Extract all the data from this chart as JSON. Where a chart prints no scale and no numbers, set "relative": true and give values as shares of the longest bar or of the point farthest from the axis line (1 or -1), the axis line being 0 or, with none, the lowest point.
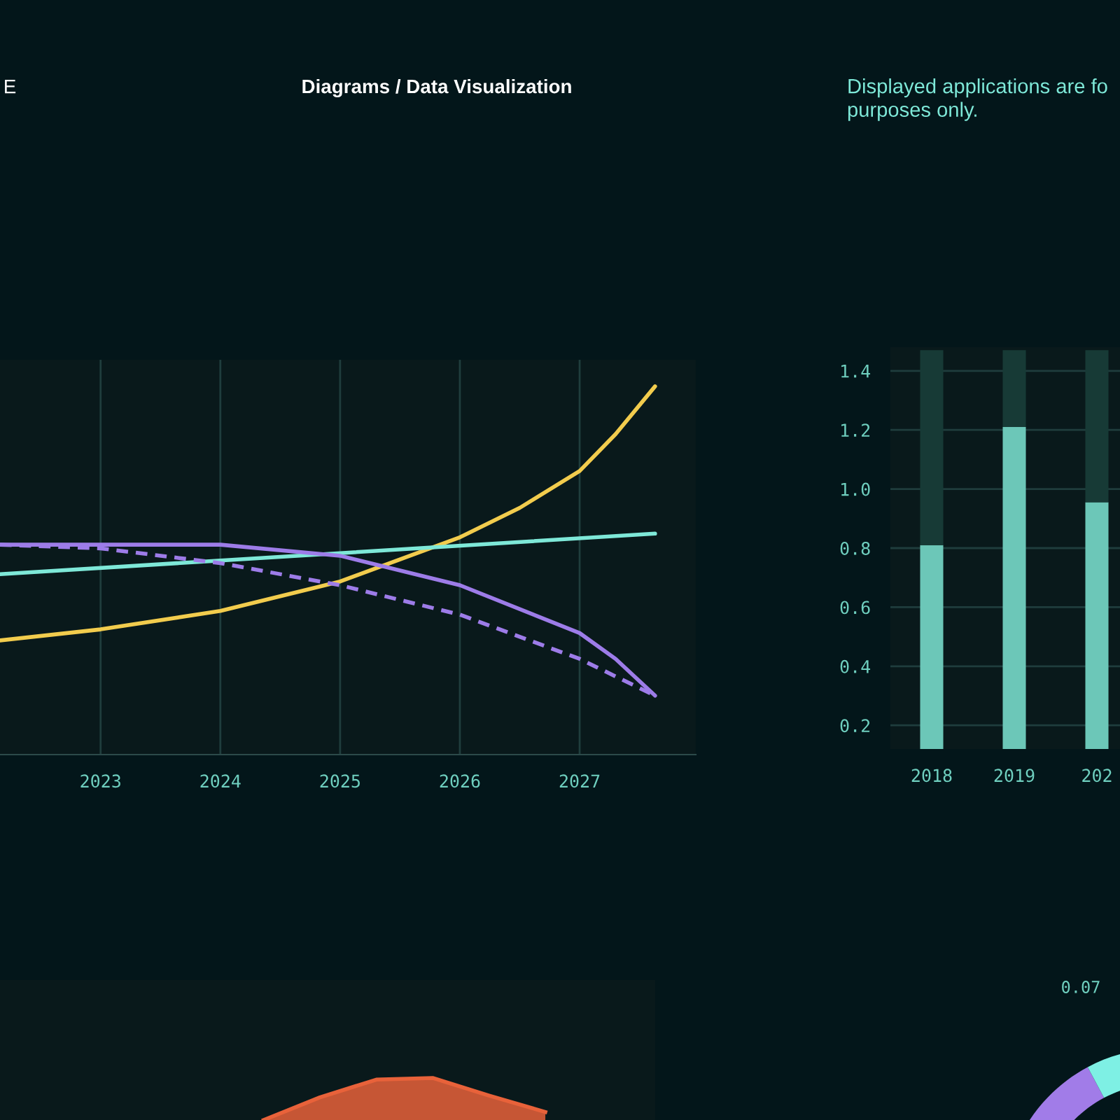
{
  "chart_data": [
    {
      "type": "line",
      "title": "Diagrams / Data Visualization",
      "annotations": [
        "E"
      ],
      "relative": true,
      "xlim": [
        2022.16,
        2027.97
      ],
      "xticks": [
        2023,
        2024,
        2025,
        2026,
        2027
      ],
      "grid": "x",
      "tick_labels": "x",
      "series": [
        {
          "color": "#f2cc4d",
          "line_style": "solid",
          "x": [
            2022.16,
            2023,
            2024,
            2025,
            2026,
            2026.5,
            2027,
            2027.3,
            2027.63
          ],
          "values": [
            0.31,
            0.34,
            0.39,
            0.47,
            0.59,
            0.67,
            0.77,
            0.87,
            1.0
          ]
        },
        {
          "color": "#7ee8d8",
          "line_style": "solid",
          "x": [
            2022.16,
            2027.63
          ],
          "values": [
            0.49,
            0.6
          ]
        },
        {
          "color": "#9d7ce8",
          "line_style": "solid",
          "x": [
            2022.16,
            2023,
            2024,
            2025,
            2026,
            2027,
            2027.3,
            2027.63
          ],
          "values": [
            0.57,
            0.57,
            0.57,
            0.54,
            0.46,
            0.33,
            0.26,
            0.16
          ]
        },
        {
          "color": "#9d7ce8",
          "line_style": "dashed",
          "x": [
            2022.16,
            2023,
            2024,
            2025,
            2026,
            2027,
            2027.63
          ],
          "values": [
            0.57,
            0.56,
            0.52,
            0.46,
            0.38,
            0.26,
            0.16
          ]
        }
      ]
    },
    {
      "type": "bar",
      "annotations": [
        "Displayed applications are fo\npurposes only."
      ],
      "categories": [
        "2018",
        "2019",
        "202"
      ],
      "stacked": true,
      "ylim": [
        0.12,
        1.48
      ],
      "yticks": [
        {
          "value": 0.2,
          "label": "0.2"
        },
        {
          "value": 0.4,
          "label": "0.4"
        },
        {
          "value": 0.6,
          "label": "0.6"
        },
        {
          "value": 0.8,
          "label": "0.8"
        },
        {
          "value": 1.0,
          "label": "1.0"
        },
        {
          "value": 1.2,
          "label": "1.2"
        },
        {
          "value": 1.4,
          "label": "1.4"
        }
      ],
      "grid": "y",
      "series": [
        {
          "color": "#6cc7b8",
          "values": [
            0.81,
            1.21,
            0.955
          ]
        },
        {
          "color": "#173a36",
          "values": [
            0.66,
            0.26,
            0.515
          ]
        }
      ]
    },
    {
      "type": "area",
      "relative": true,
      "categories": [
        null,
        null,
        null,
        null,
        null,
        null,
        null,
        null,
        null,
        null,
        null
      ],
      "grid": "x",
      "tick_labels": false,
      "series": [
        {
          "color": "#e8623a",
          "values": [
            null,
            null,
            null,
            null,
            0,
            0.54,
            0.96,
            1.0,
            0.58,
            0.19,
            null
          ]
        }
      ]
    },
    {
      "type": "donut",
      "categories": [
        null,
        null
      ],
      "values": [
        50,
        50
      ],
      "colors": [
        "#a17ce8",
        "#7ef0e4"
      ],
      "annotations": [
        "0.07"
      ]
    }
  ]
}
